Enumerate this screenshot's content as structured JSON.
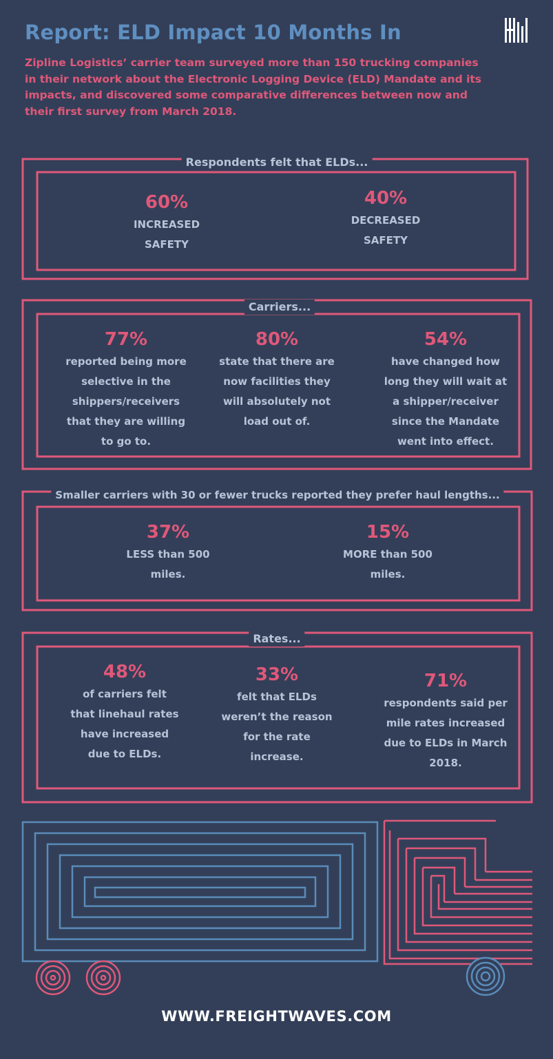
{
  "header": {
    "title": "Report: ELD Impact 10 Months In",
    "intro": "Zipline Logistics’ carrier team surveyed more than 150 trucking companies in their network about the Electronic Logging Device (ELD) Mandate and its impacts, and discovered some comparative differences between now and their first survey from March 2018."
  },
  "sections": {
    "safety": {
      "heading": "Respondents felt that ELDs...",
      "stats": [
        {
          "pct": "60%",
          "desc": "INCREASED SAFETY"
        },
        {
          "pct": "40%",
          "desc": "DECREASED SAFETY"
        }
      ]
    },
    "carriers": {
      "heading": "Carriers...",
      "stats": [
        {
          "pct": "77%",
          "desc": "reported being more selective in the shippers/receivers that they are willing to go to."
        },
        {
          "pct": "80%",
          "desc": "state that there are now facilities they will absolutely not load out of."
        },
        {
          "pct": "54%",
          "desc": "have changed how long they will wait at a shipper/receiver since the Mandate went into effect."
        }
      ]
    },
    "haul": {
      "heading": "Smaller carriers with 30 or fewer trucks reported they prefer haul lengths...",
      "stats": [
        {
          "pct": "37%",
          "desc": "LESS than 500 miles."
        },
        {
          "pct": "15%",
          "desc": "MORE than 500 miles."
        }
      ]
    },
    "rates": {
      "heading": "Rates...",
      "stats": [
        {
          "pct": "48%",
          "desc": "of carriers felt that linehaul rates have increased due to ELDs."
        },
        {
          "pct": "33%",
          "desc": "felt that ELDs weren’t the reason for the rate increase."
        },
        {
          "pct": "71%",
          "desc": "respondents said per mile rates increased due to ELDs in March 2018."
        }
      ]
    }
  },
  "footer": {
    "website": "WWW.FREIGHTWAVES.COM"
  },
  "colors": {
    "background": "#333f58",
    "accent_pink": "#e0587a",
    "title_blue": "#5f8fc1",
    "text_light": "#b6c4d8",
    "truck_blue": "#5a8cba"
  }
}
